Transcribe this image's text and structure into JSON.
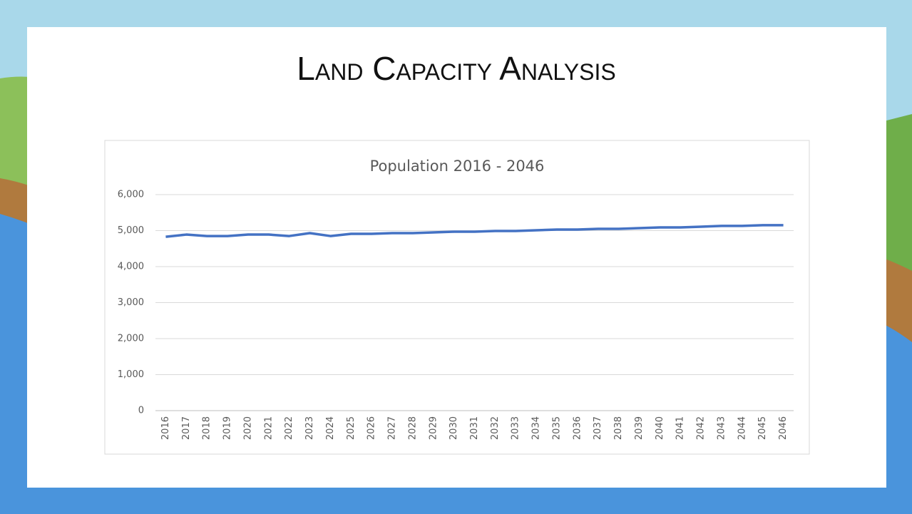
{
  "slide_title": "Land Capacity Analysis",
  "chart_data": {
    "type": "line",
    "title": "Population 2016 - 2046",
    "categories": [
      "2016",
      "2017",
      "2018",
      "2019",
      "2020",
      "2021",
      "2022",
      "2023",
      "2024",
      "2025",
      "2026",
      "2027",
      "2028",
      "2029",
      "2030",
      "2031",
      "2032",
      "2033",
      "2034",
      "2035",
      "2036",
      "2037",
      "2038",
      "2039",
      "2040",
      "2041",
      "2042",
      "2043",
      "2044",
      "2045",
      "2046"
    ],
    "series": [
      {
        "name": "Population",
        "color": "#4472c4",
        "values": [
          4830,
          4890,
          4850,
          4850,
          4890,
          4890,
          4850,
          4930,
          4850,
          4910,
          4910,
          4930,
          4930,
          4950,
          4970,
          4970,
          4990,
          4990,
          5010,
          5030,
          5030,
          5050,
          5050,
          5070,
          5090,
          5090,
          5110,
          5130,
          5130,
          5150,
          5150
        ]
      }
    ],
    "ylim": [
      0,
      6000
    ],
    "yticks": [
      0,
      {
        "value": 1000,
        "label": "1,000"
      },
      {
        "value": 2000,
        "label": "2,000"
      },
      {
        "value": 3000,
        "label": "3,000"
      },
      {
        "value": 4000,
        "label": "4,000"
      },
      {
        "value": 5000,
        "label": "5,000"
      },
      {
        "value": 6000,
        "label": "6,000"
      }
    ],
    "grid": true
  }
}
